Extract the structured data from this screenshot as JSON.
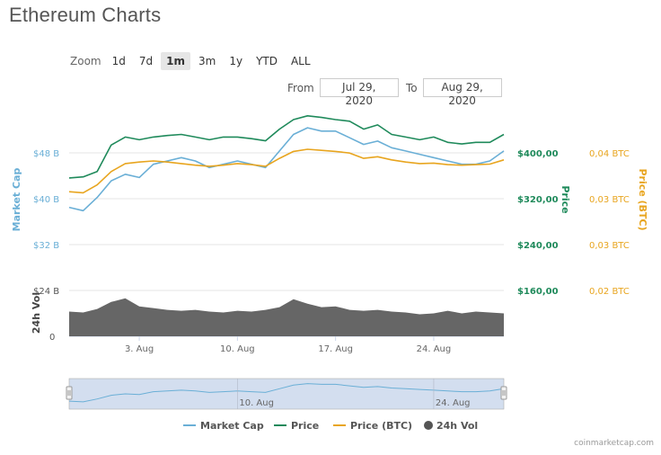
{
  "title": "Ethereum Charts",
  "zoom": {
    "label": "Zoom",
    "buttons": [
      "1d",
      "7d",
      "1m",
      "3m",
      "1y",
      "YTD",
      "ALL"
    ],
    "active": "1m"
  },
  "range": {
    "from_label": "From",
    "from_value": "Jul 29, 2020",
    "to_label": "To",
    "to_value": "Aug 29, 2020"
  },
  "credit": "coinmarketcap.com",
  "colors": {
    "market_cap": "#6aafd6",
    "price": "#1f8a5b",
    "price_btc": "#e8a51f",
    "volume": "#555555",
    "grid": "#e6e6e6",
    "navigator_fill": "#c9d7ec"
  },
  "chart_data": {
    "type": "line",
    "title": "Ethereum Charts",
    "x_dates": [
      "2020-07-29",
      "2020-07-30",
      "2020-07-31",
      "2020-08-01",
      "2020-08-02",
      "2020-08-03",
      "2020-08-04",
      "2020-08-05",
      "2020-08-06",
      "2020-08-07",
      "2020-08-08",
      "2020-08-09",
      "2020-08-10",
      "2020-08-11",
      "2020-08-12",
      "2020-08-13",
      "2020-08-14",
      "2020-08-15",
      "2020-08-16",
      "2020-08-17",
      "2020-08-18",
      "2020-08-19",
      "2020-08-20",
      "2020-08-21",
      "2020-08-22",
      "2020-08-23",
      "2020-08-24",
      "2020-08-25",
      "2020-08-26",
      "2020-08-27",
      "2020-08-28",
      "2020-08-29"
    ],
    "x_ticks": [
      "3. Aug",
      "10. Aug",
      "17. Aug",
      "24. Aug"
    ],
    "series": [
      {
        "name": "Market Cap",
        "axis": "market_cap",
        "values": [
          37.0,
          36.5,
          38.5,
          41.0,
          42.0,
          41.5,
          43.5,
          44.0,
          44.5,
          44.0,
          43.0,
          43.5,
          44.0,
          43.5,
          43.0,
          45.5,
          48.0,
          49.0,
          48.5,
          48.5,
          47.5,
          46.5,
          47.0,
          46.0,
          45.5,
          45.0,
          44.5,
          44.0,
          43.5,
          43.5,
          44.0,
          45.5
        ]
      },
      {
        "name": "Price",
        "axis": "price",
        "values": [
          318,
          320,
          330,
          380,
          395,
          390,
          395,
          398,
          400,
          395,
          390,
          395,
          395,
          392,
          388,
          410,
          428,
          435,
          432,
          428,
          425,
          410,
          418,
          400,
          395,
          390,
          395,
          385,
          382,
          385,
          385,
          400
        ]
      },
      {
        "name": "Price (BTC)",
        "axis": "price_btc",
        "values": [
          0.0292,
          0.029,
          0.0305,
          0.033,
          0.0345,
          0.0348,
          0.035,
          0.0348,
          0.0345,
          0.0342,
          0.034,
          0.0342,
          0.0345,
          0.0343,
          0.034,
          0.0355,
          0.0368,
          0.0372,
          0.037,
          0.0368,
          0.0365,
          0.0355,
          0.0358,
          0.0352,
          0.0348,
          0.0345,
          0.0346,
          0.0343,
          0.0342,
          0.0343,
          0.0344,
          0.0352
        ]
      },
      {
        "name": "24h Vol",
        "axis": "volume",
        "type": "area",
        "values": [
          14.0,
          13.5,
          15.5,
          19.5,
          21.5,
          17.0,
          16.0,
          15.0,
          14.5,
          15.0,
          14.0,
          13.5,
          14.5,
          14.0,
          15.0,
          16.5,
          21.0,
          18.5,
          16.5,
          17.0,
          15.0,
          14.5,
          15.0,
          14.0,
          13.5,
          12.5,
          13.0,
          14.5,
          13.0,
          14.0,
          13.5,
          13.0
        ]
      }
    ],
    "axes": {
      "market_cap": {
        "label": "Market Cap",
        "ticks": [
          "$32 B",
          "$40 B",
          "$48 B"
        ],
        "range": [
          28,
          52
        ]
      },
      "volume": {
        "label": "24h Vol",
        "ticks": [
          "0",
          "$24 B"
        ],
        "range": [
          0,
          26
        ]
      },
      "price": {
        "label": "Price",
        "ticks": [
          "$160,00",
          "$240,00",
          "$320,00",
          "$400,00"
        ],
        "range": [
          150,
          450
        ]
      },
      "price_btc": {
        "label": "Price (BTC)",
        "ticks": [
          "0,02 BTC",
          "0,03 BTC",
          "0,03 BTC",
          "0,04 BTC"
        ],
        "range": [
          0.015,
          0.045
        ]
      }
    },
    "grid": true,
    "legend": [
      "Market Cap",
      "Price",
      "Price (BTC)",
      "24h Vol"
    ],
    "legend_position": "bottom"
  }
}
